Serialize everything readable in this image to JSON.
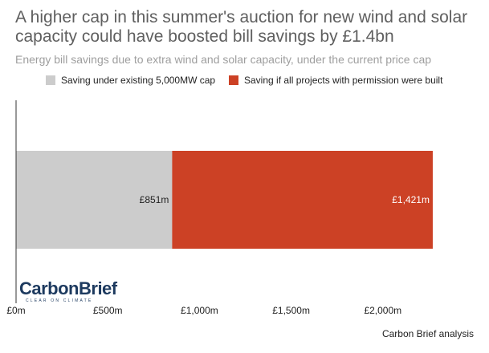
{
  "title": "A higher cap in this summer's auction for new wind and solar capacity could have boosted bill savings by £1.4bn",
  "subtitle": "Energy bill savings due to extra wind and solar capacity, under the current price cap",
  "source": "Carbon Brief analysis",
  "logo": {
    "name": "CarbonBrief",
    "tagline": "CLEAR ON CLIMATE"
  },
  "chart_data": {
    "type": "bar",
    "orientation": "horizontal",
    "stacked": true,
    "categories": [
      ""
    ],
    "series": [
      {
        "name": "Saving under existing 5,000MW cap",
        "values": [
          851
        ],
        "label": "£851m",
        "color": "#cccccc"
      },
      {
        "name": "Saving if all projects with permission were built",
        "values": [
          1421
        ],
        "label": "£1,421m",
        "color": "#cc4125"
      }
    ],
    "x_ticks": [
      0,
      500,
      1000,
      1500,
      2000
    ],
    "x_tick_labels": [
      "£0m",
      "£500m",
      "£1,000m",
      "£1,500m",
      "£2,000m"
    ],
    "xlim": [
      0,
      2500
    ],
    "xlabel": "",
    "ylabel": "",
    "grid": false,
    "legend_position": "top"
  }
}
